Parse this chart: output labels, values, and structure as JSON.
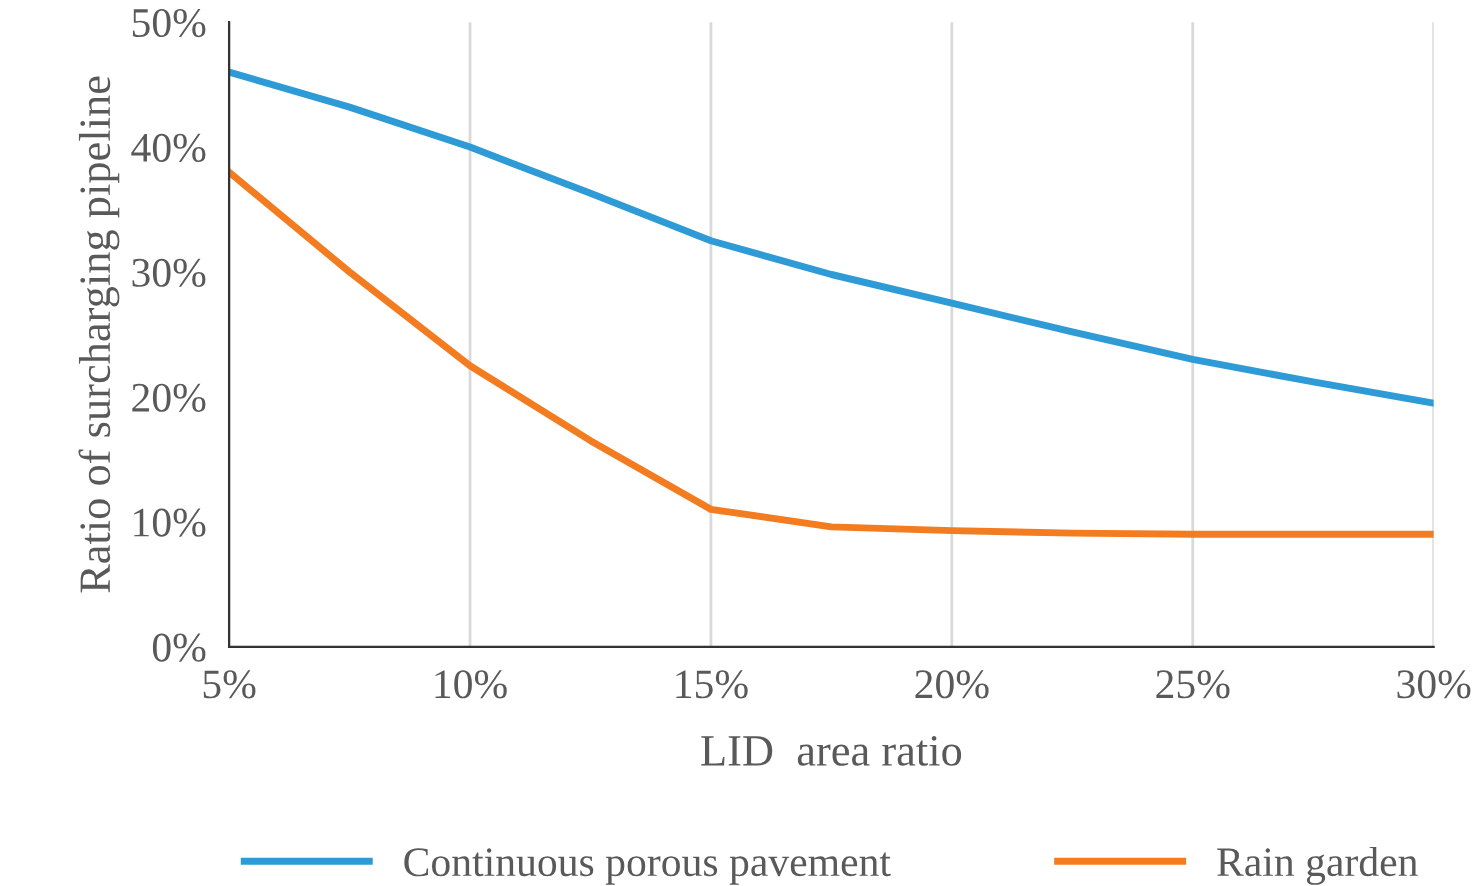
{
  "chart_data": {
    "type": "line",
    "xlabel": "LID  area ratio",
    "ylabel": "Ratio of surcharging pipeline",
    "x": [
      5,
      7.5,
      10,
      12.5,
      15,
      17.5,
      20,
      22.5,
      25,
      27.5,
      30
    ],
    "series": [
      {
        "name": "Continuous porous pavement",
        "color": "#2e9bd6",
        "values": [
          46,
          43.2,
          40,
          36.3,
          32.5,
          29.8,
          27.5,
          25.2,
          23,
          21.2,
          19.5
        ]
      },
      {
        "name": "Rain garden",
        "color": "#f47c20",
        "values": [
          38,
          30,
          22.5,
          16.5,
          11,
          9.6,
          9.3,
          9.1,
          9,
          9,
          9
        ]
      }
    ],
    "xlim": [
      5,
      30
    ],
    "ylim": [
      0,
      50
    ],
    "xticks": [
      {
        "value": 5,
        "label": "5%"
      },
      {
        "value": 10,
        "label": "10%"
      },
      {
        "value": 15,
        "label": "15%"
      },
      {
        "value": 20,
        "label": "20%"
      },
      {
        "value": 25,
        "label": "25%"
      },
      {
        "value": 30,
        "label": "30%"
      }
    ],
    "yticks": [
      {
        "value": 0,
        "label": "0%"
      },
      {
        "value": 10,
        "label": "10%"
      },
      {
        "value": 20,
        "label": "20%"
      },
      {
        "value": 30,
        "label": "30%"
      },
      {
        "value": 40,
        "label": "40%"
      },
      {
        "value": 50,
        "label": "50%"
      }
    ],
    "grid": "x",
    "legend": "bottom",
    "marker": "none",
    "line_style": "solid"
  }
}
